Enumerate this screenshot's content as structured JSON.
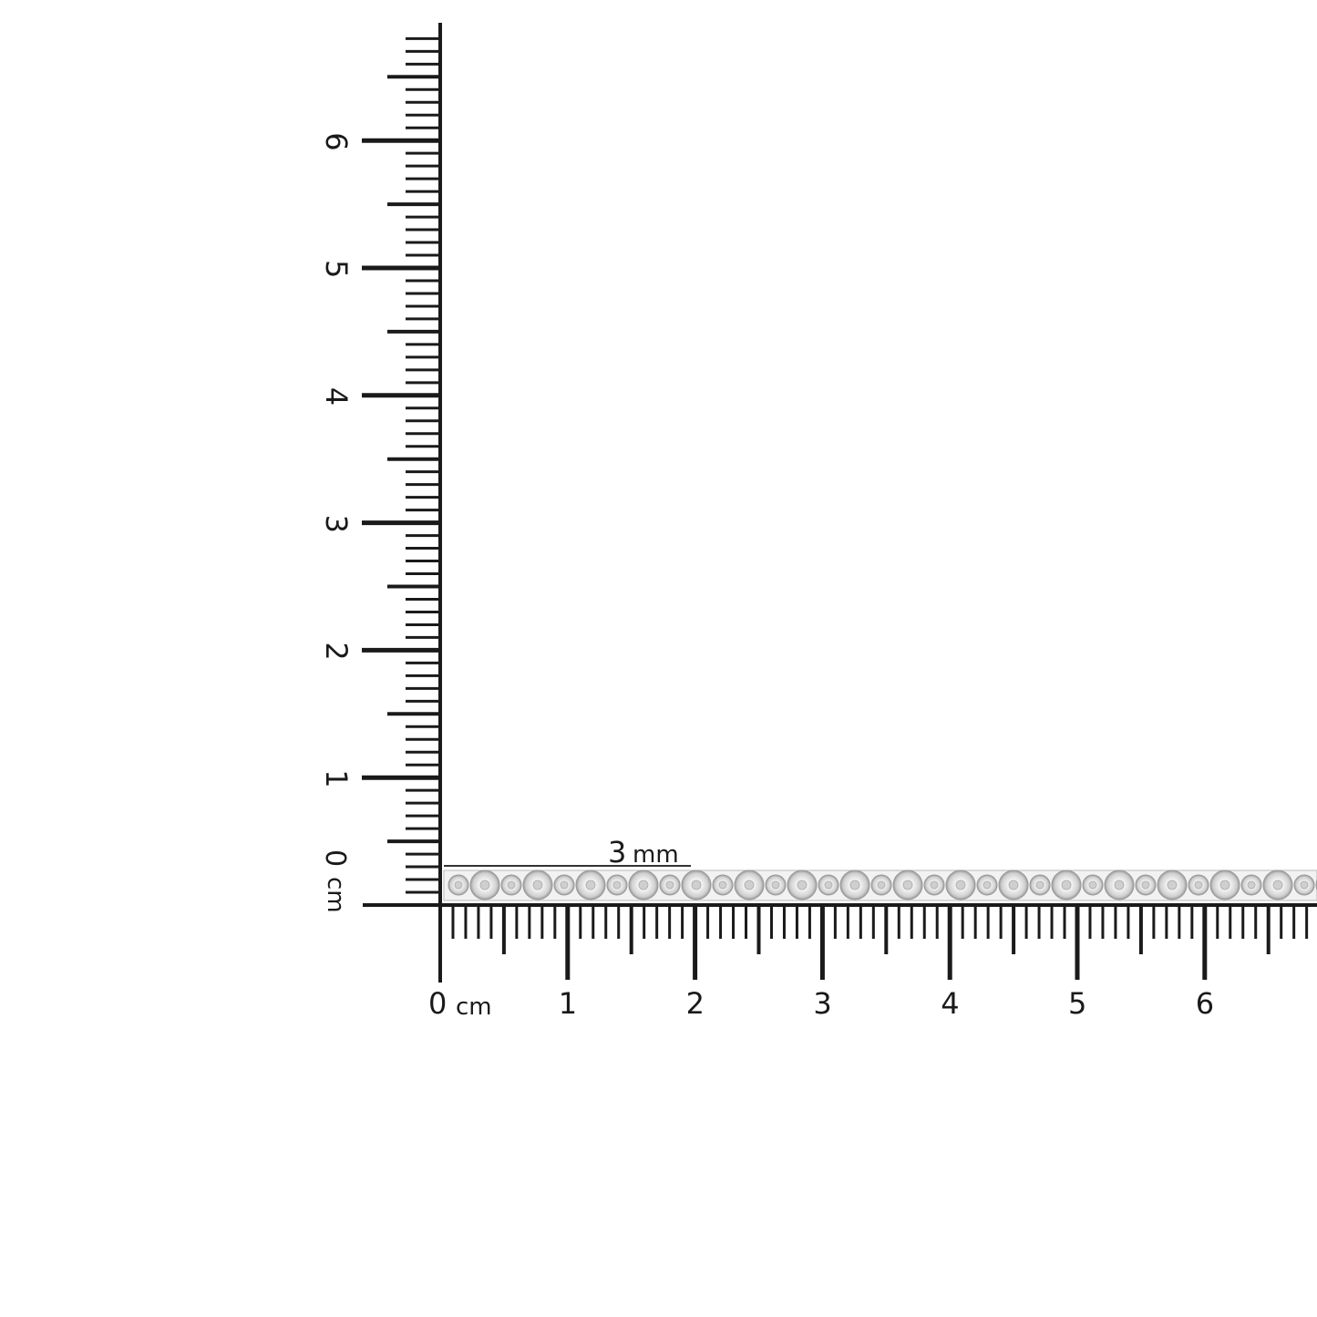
{
  "ruler": {
    "unit": "cm",
    "vertical_labels": [
      "0",
      "1",
      "2",
      "3",
      "4",
      "5",
      "6"
    ],
    "horizontal_labels": [
      "0",
      "1",
      "2",
      "3",
      "4",
      "5",
      "6"
    ],
    "color": "#1a1a1a"
  },
  "measurement": {
    "label": "3",
    "unit": "mm"
  },
  "product": {
    "type": "tennis bracelet strip",
    "metal_color": "#d9d9d9"
  }
}
